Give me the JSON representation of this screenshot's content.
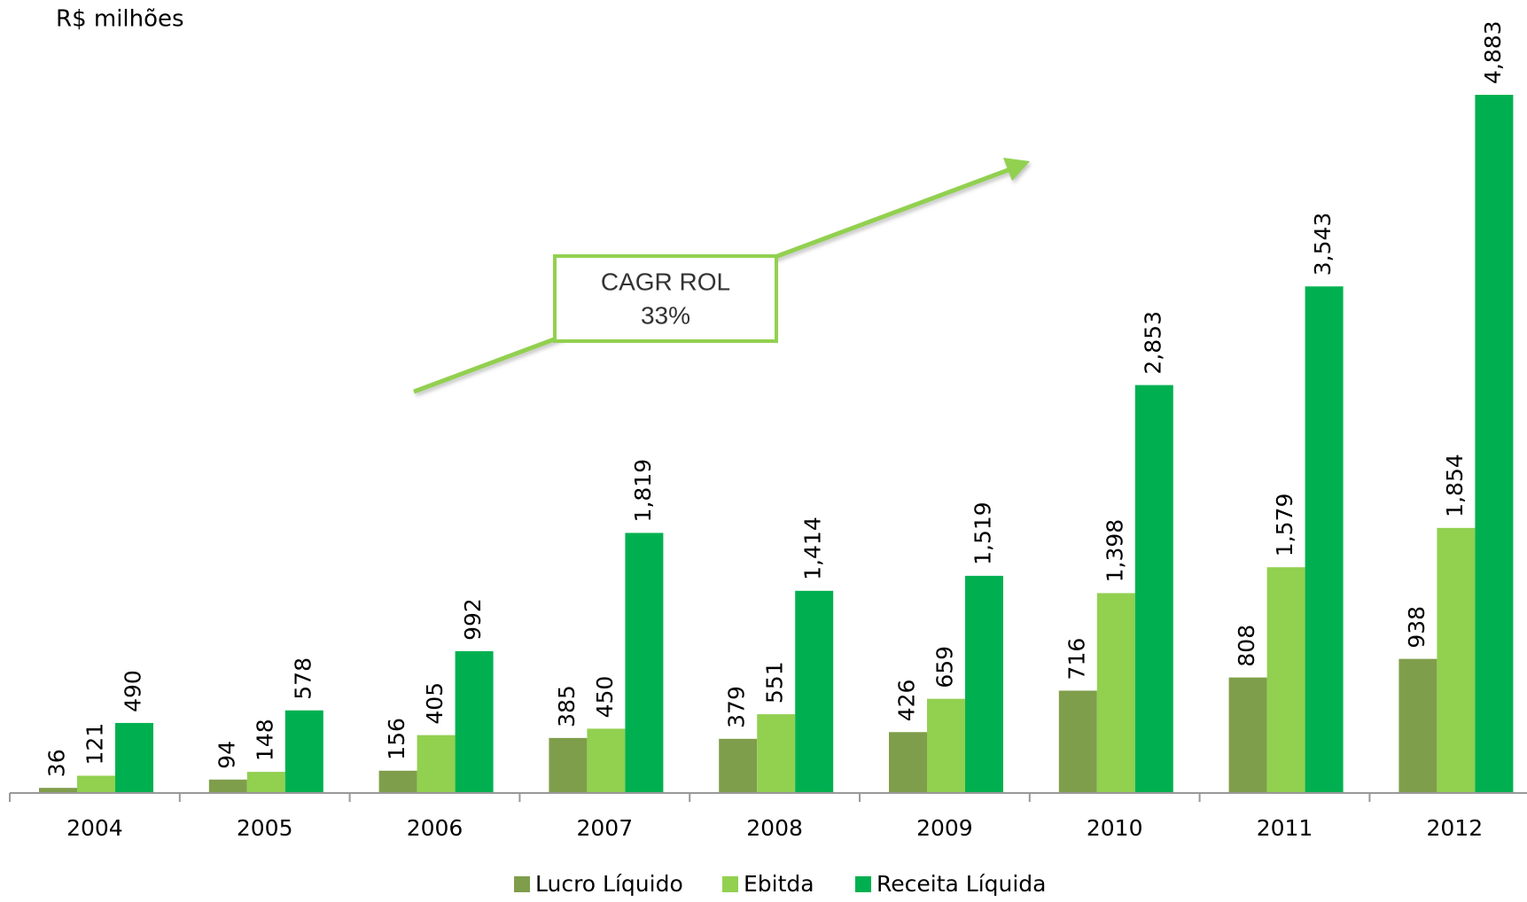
{
  "chart_data": {
    "type": "bar",
    "title": "R$ milhões",
    "annotation": [
      "CAGR ROL",
      "33%"
    ],
    "categories": [
      "2004",
      "2005",
      "2006",
      "2007",
      "2008",
      "2009",
      "2010",
      "2011",
      "2012"
    ],
    "series": [
      {
        "name": "Lucro Líquido",
        "color": "#7f9e4b",
        "values": [
          36,
          94,
          156,
          385,
          379,
          426,
          716,
          808,
          938
        ],
        "value_labels": [
          "36",
          "94",
          "156",
          "385",
          "379",
          "426",
          "716",
          "808",
          "938"
        ]
      },
      {
        "name": "Ebitda",
        "color": "#92d050",
        "values": [
          121,
          148,
          405,
          450,
          551,
          659,
          1398,
          1579,
          1854
        ],
        "value_labels": [
          "121",
          "148",
          "405",
          "450",
          "551",
          "659",
          "1,398",
          "1,579",
          "1,854"
        ]
      },
      {
        "name": "Receita Líquida",
        "color": "#00b050",
        "values": [
          490,
          578,
          992,
          1819,
          1414,
          1519,
          2853,
          3543,
          4883
        ],
        "value_labels": [
          "490",
          "578",
          "992",
          "1,819",
          "1,414",
          "1,519",
          "2,853",
          "3,543",
          "4,883"
        ]
      }
    ]
  }
}
